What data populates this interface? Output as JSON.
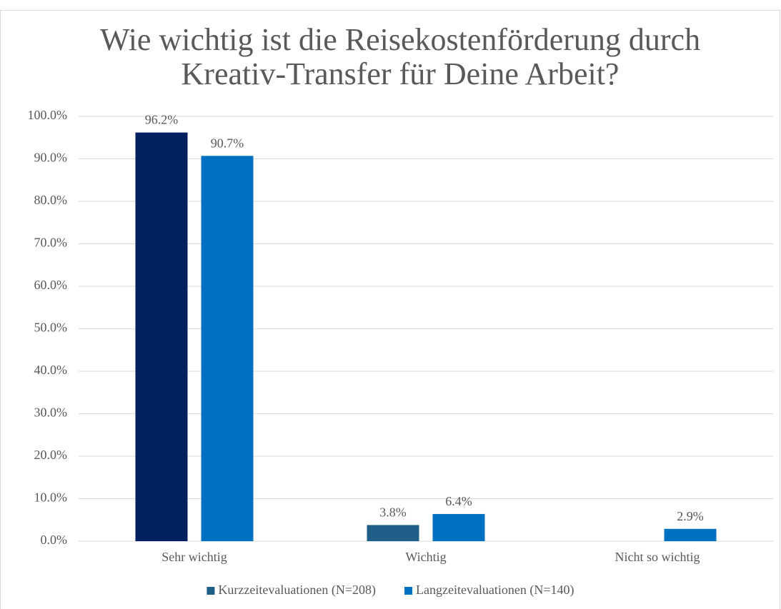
{
  "chart_data": {
    "type": "bar",
    "title": "Wie wichtig ist die Reisekostenförderung durch",
    "title_line2": "Kreativ-Transfer für Deine Arbeit?",
    "categories": [
      "Sehr wichtig",
      "Wichtig",
      "Nicht so wichtig"
    ],
    "series": [
      {
        "name": "Kurzzeitevaluationen (N=208)",
        "color": "#1f5f87",
        "colors": [
          "#002060",
          "#1f5f87",
          "#1f5f87"
        ],
        "values": [
          96.2,
          3.8,
          null
        ],
        "value_labels": [
          "96.2%",
          "3.8%",
          null
        ]
      },
      {
        "name": "Langzeitevaluationen (N=140)",
        "color": "#0070c0",
        "values": [
          90.7,
          6.4,
          2.9
        ],
        "value_labels": [
          "90.7%",
          "6.4%",
          "2.9%"
        ]
      }
    ],
    "ylim": [
      0,
      100
    ],
    "yticks": [
      {
        "value": 0,
        "label": "0.0%"
      },
      {
        "value": 10,
        "label": "10.0%"
      },
      {
        "value": 20,
        "label": "20.0%"
      },
      {
        "value": 30,
        "label": "30.0%"
      },
      {
        "value": 40,
        "label": "40.0%"
      },
      {
        "value": 50,
        "label": "50.0%"
      },
      {
        "value": 60,
        "label": "60.0%"
      },
      {
        "value": 70,
        "label": "70.0%"
      },
      {
        "value": 80,
        "label": "80.0%"
      },
      {
        "value": 90,
        "label": "90.0%"
      },
      {
        "value": 100,
        "label": "100.0%"
      }
    ],
    "grid": true,
    "legend": "bottom"
  }
}
